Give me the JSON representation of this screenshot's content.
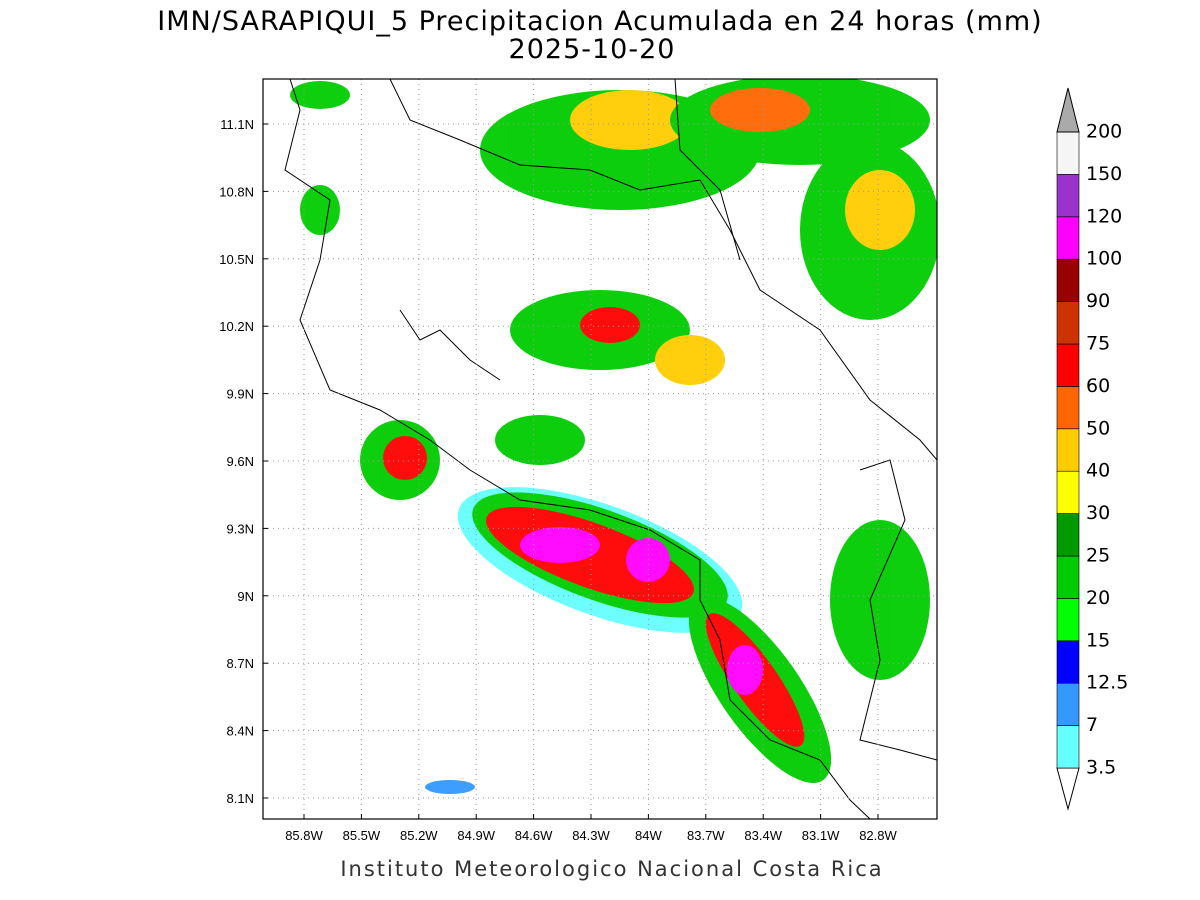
{
  "title": "IMN/SARAPIQUI_5 Precipitacion Acumulada en 24 horas (mm)",
  "date": "2025-10-20",
  "lat_ticks": [
    "11.1N",
    "10.8N",
    "10.5N",
    "10.2N",
    "9.9N",
    "9.6N",
    "9.3N",
    "9N",
    "8.7N",
    "8.4N",
    "8.1N"
  ],
  "lon_ticks": [
    "85.8W",
    "85.5W",
    "85.2W",
    "84.9W",
    "84.6W",
    "84.3W",
    "84W",
    "83.7W",
    "83.4W",
    "83.1W",
    "82.8W"
  ],
  "colorbar": {
    "levels": [
      3.5,
      7,
      12.5,
      15,
      20,
      25,
      30,
      40,
      50,
      60,
      75,
      90,
      100,
      120,
      150,
      200
    ],
    "colors": [
      "#ffffff",
      "#66ffff",
      "#3399ff",
      "#0000ff",
      "#00ff00",
      "#00cc00",
      "#009900",
      "#ffff00",
      "#ffcc00",
      "#ff6600",
      "#ff0000",
      "#cc3300",
      "#990000",
      "#ff00ff",
      "#9933cc",
      "#f5f5f5",
      "#aaaaaa"
    ]
  },
  "footer": "Instituto Meteorologico Nacional Costa Rica"
}
